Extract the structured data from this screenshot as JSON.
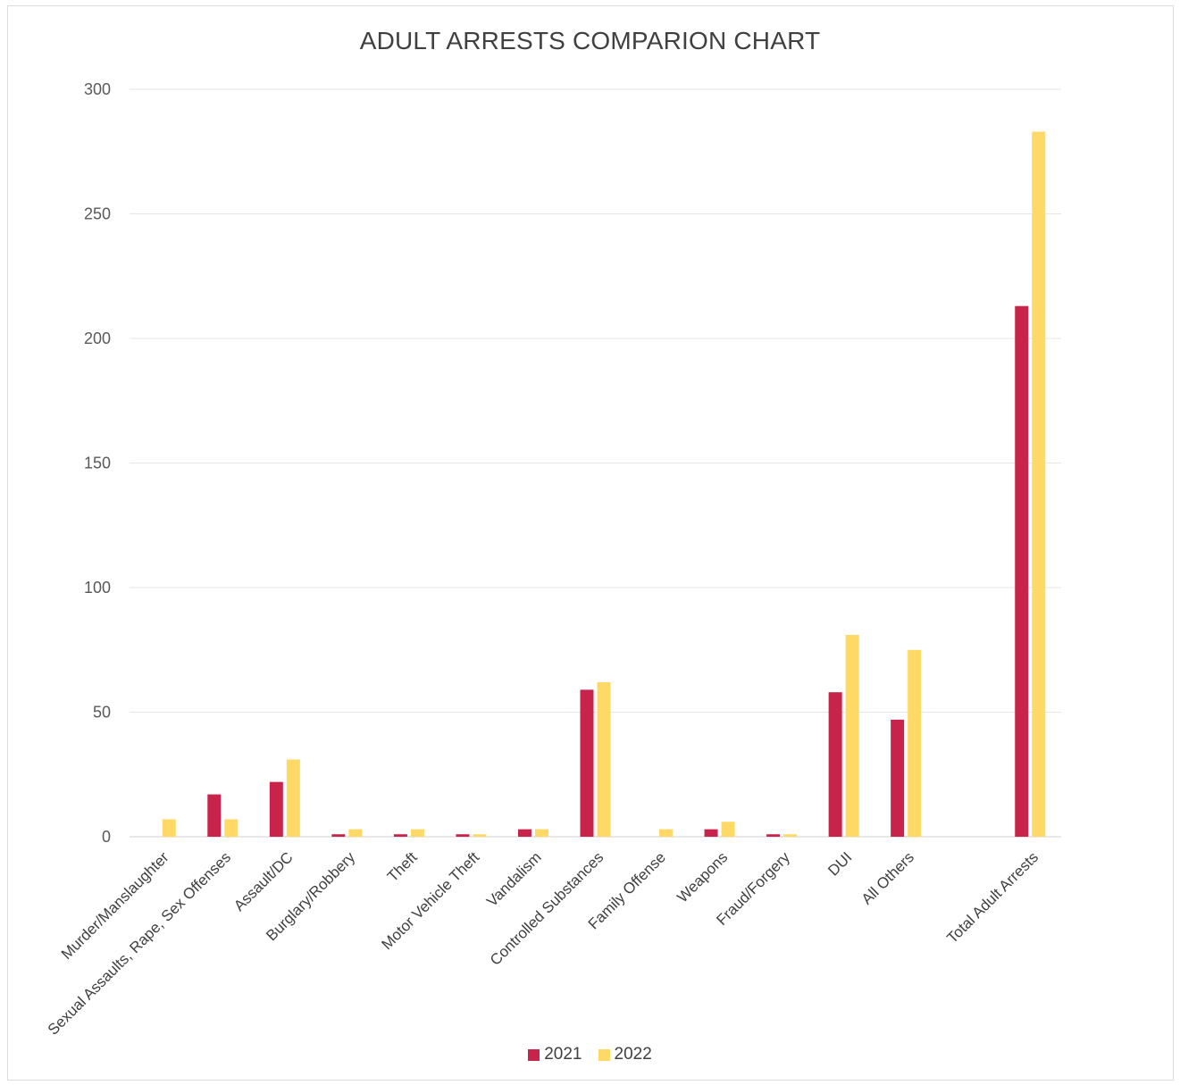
{
  "chart_data": {
    "type": "bar",
    "title": "ADULT ARRESTS COMPARION CHART",
    "xlabel": "",
    "ylabel": "",
    "ylim": [
      0,
      300
    ],
    "yticks": [
      "0",
      "50",
      "100",
      "150",
      "200",
      "250",
      "300"
    ],
    "grid": true,
    "legend_position": "bottom",
    "categories": [
      "Murder/Manslaughter",
      "Sexual Assaults, Rape, Sex Offenses",
      "Assault/DC",
      "Burglary/Robbery",
      "Theft",
      "Motor Vehicle Theft",
      "Vandalism",
      "Controlled Substances",
      "Family Offense",
      "Weapons",
      "Fraud/Forgery",
      "DUI",
      "All Others",
      "",
      "Total Adult Arrests"
    ],
    "series": [
      {
        "name": "2021",
        "color": "#c8234a",
        "values": [
          0,
          17,
          22,
          1,
          1,
          1,
          3,
          59,
          0,
          3,
          1,
          58,
          47,
          null,
          213
        ]
      },
      {
        "name": "2022",
        "color": "#ffd966",
        "values": [
          7,
          7,
          31,
          3,
          3,
          1,
          3,
          62,
          3,
          6,
          1,
          81,
          75,
          null,
          283
        ]
      }
    ]
  }
}
